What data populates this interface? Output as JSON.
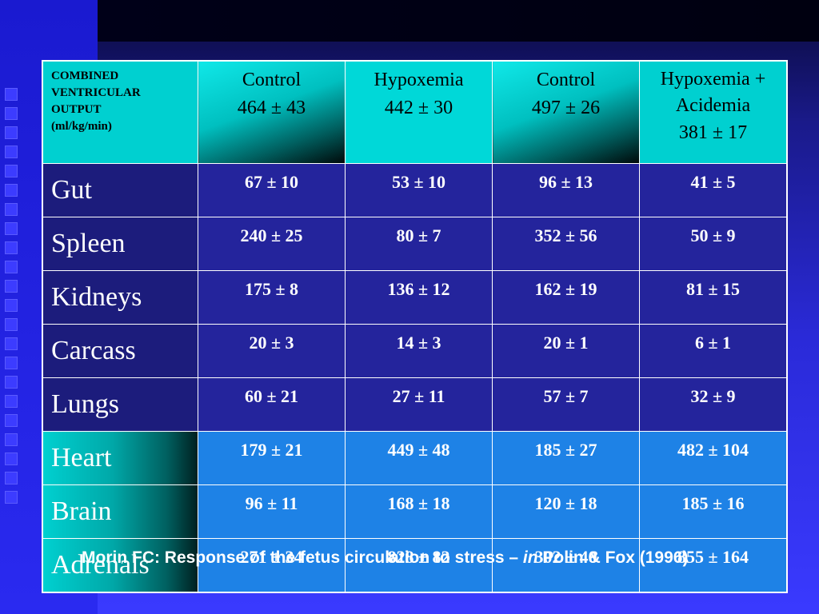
{
  "header": {
    "label_lines": [
      "COMBINED",
      "VENTRICULAR",
      "OUTPUT",
      "(ml/kg/min)"
    ],
    "columns": [
      {
        "name": "Control",
        "total": "464 ± 43"
      },
      {
        "name": "Hypoxemia",
        "total": "442 ± 30"
      },
      {
        "name": "Control",
        "total": "497 ± 26"
      },
      {
        "name": "Hypoxemia + Acidemia",
        "total": "381 ± 17"
      }
    ]
  },
  "rows": [
    {
      "organ": "Gut",
      "values": [
        "67 ± 10",
        "53 ± 10",
        "96 ± 13",
        "41 ± 5"
      ]
    },
    {
      "organ": "Spleen",
      "values": [
        "240 ± 25",
        "80 ± 7",
        "352 ± 56",
        "50 ± 9"
      ]
    },
    {
      "organ": "Kidneys",
      "values": [
        "175 ± 8",
        "136 ± 12",
        "162 ± 19",
        "81 ± 15"
      ]
    },
    {
      "organ": "Carcass",
      "values": [
        "20 ± 3",
        "14 ± 3",
        "20 ± 1",
        "6 ± 1"
      ]
    },
    {
      "organ": "Lungs",
      "values": [
        "60 ± 21",
        "27 ± 11",
        "57 ± 7",
        "32 ± 9"
      ]
    },
    {
      "organ": "Heart",
      "values": [
        "179 ± 21",
        "449 ± 48",
        "185 ± 27",
        "482 ± 104"
      ]
    },
    {
      "organ": "Brain",
      "values": [
        "96 ± 11",
        "168 ± 18",
        "120 ± 18",
        "185 ± 16"
      ]
    },
    {
      "organ": "Adrenals",
      "values": [
        "271 ± 34",
        "828 ± 82",
        "302 ± 40",
        "855 ± 164"
      ]
    }
  ],
  "citation": {
    "pre": "Morin FC: Response of the fetus circulation to stress – ",
    "italic": "in",
    "post": " Polin & Fox (1996)"
  }
}
